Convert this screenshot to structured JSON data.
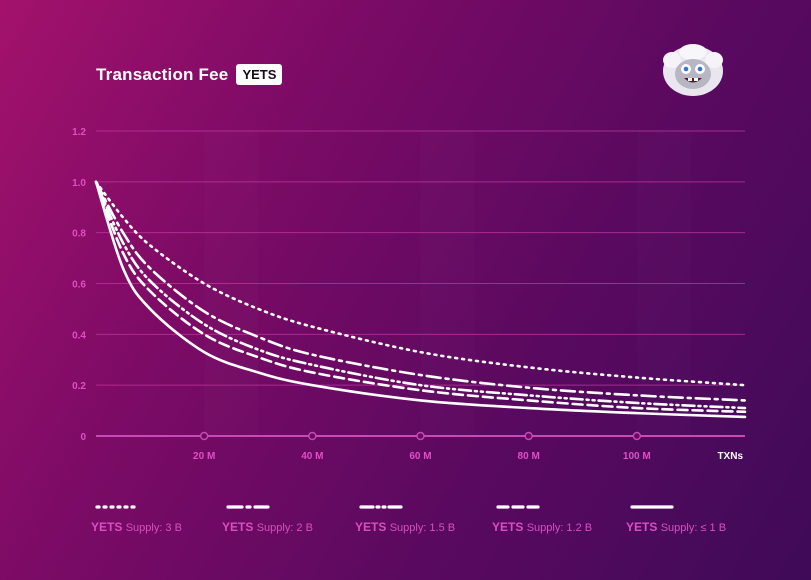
{
  "header": {
    "title": "Transaction Fee",
    "badge": "YETS"
  },
  "colors": {
    "accent": "#e04fc4",
    "series_line": "#ffffff",
    "grid": "#c2369f"
  },
  "icons": {
    "mascot": "yeti-mascot-icon"
  },
  "chart_data": {
    "type": "line",
    "title": "Transaction Fee",
    "xlabel": "TXNs",
    "ylabel": "",
    "xlim": [
      0,
      120
    ],
    "ylim": [
      0,
      1.2
    ],
    "y_ticks": [
      "0",
      "0.2",
      "0.4",
      "0.6",
      "0.8",
      "1.0",
      "1.2"
    ],
    "x_ticks": [
      {
        "value": 20,
        "label": "20 M"
      },
      {
        "value": 40,
        "label": "40 M"
      },
      {
        "value": 60,
        "label": "60 M"
      },
      {
        "value": 80,
        "label": "80 M"
      },
      {
        "value": 100,
        "label": "100 M"
      }
    ],
    "grid": true,
    "legend_position": "bottom",
    "series": [
      {
        "name": "YETS Supply: 3 B",
        "style": "dotted",
        "x": [
          0,
          5,
          10,
          20,
          30,
          40,
          60,
          80,
          100,
          120
        ],
        "values": [
          1.0,
          0.86,
          0.75,
          0.6,
          0.5,
          0.43,
          0.33,
          0.27,
          0.23,
          0.2
        ]
      },
      {
        "name": "YETS Supply: 2 B",
        "style": "dash-dot",
        "x": [
          0,
          5,
          10,
          20,
          30,
          40,
          60,
          80,
          100,
          120
        ],
        "values": [
          1.0,
          0.8,
          0.66,
          0.49,
          0.39,
          0.32,
          0.24,
          0.19,
          0.16,
          0.14
        ]
      },
      {
        "name": "YETS Supply: 1.5 B",
        "style": "dash-dot-dot",
        "x": [
          0,
          5,
          10,
          20,
          30,
          40,
          60,
          80,
          100,
          120
        ],
        "values": [
          1.0,
          0.76,
          0.61,
          0.44,
          0.34,
          0.28,
          0.2,
          0.16,
          0.13,
          0.11
        ]
      },
      {
        "name": "YETS Supply: 1.2 B",
        "style": "dashed",
        "x": [
          0,
          5,
          10,
          20,
          30,
          40,
          60,
          80,
          100,
          120
        ],
        "values": [
          1.0,
          0.72,
          0.57,
          0.4,
          0.31,
          0.25,
          0.18,
          0.14,
          0.11,
          0.095
        ]
      },
      {
        "name": "YETS Supply: ≤ 1 B",
        "style": "solid",
        "x": [
          0,
          5,
          10,
          20,
          30,
          40,
          60,
          80,
          100,
          120
        ],
        "values": [
          1.0,
          0.66,
          0.5,
          0.33,
          0.25,
          0.2,
          0.14,
          0.11,
          0.09,
          0.075
        ]
      }
    ],
    "legend": [
      {
        "brand": "YETS",
        "text": "Supply: 3 B"
      },
      {
        "brand": "YETS",
        "text": "Supply: 2 B"
      },
      {
        "brand": "YETS",
        "text": "Supply: 1.5 B"
      },
      {
        "brand": "YETS",
        "text": "Supply: 1.2 B"
      },
      {
        "brand": "YETS",
        "text": "Supply: ≤ 1 B"
      }
    ]
  }
}
